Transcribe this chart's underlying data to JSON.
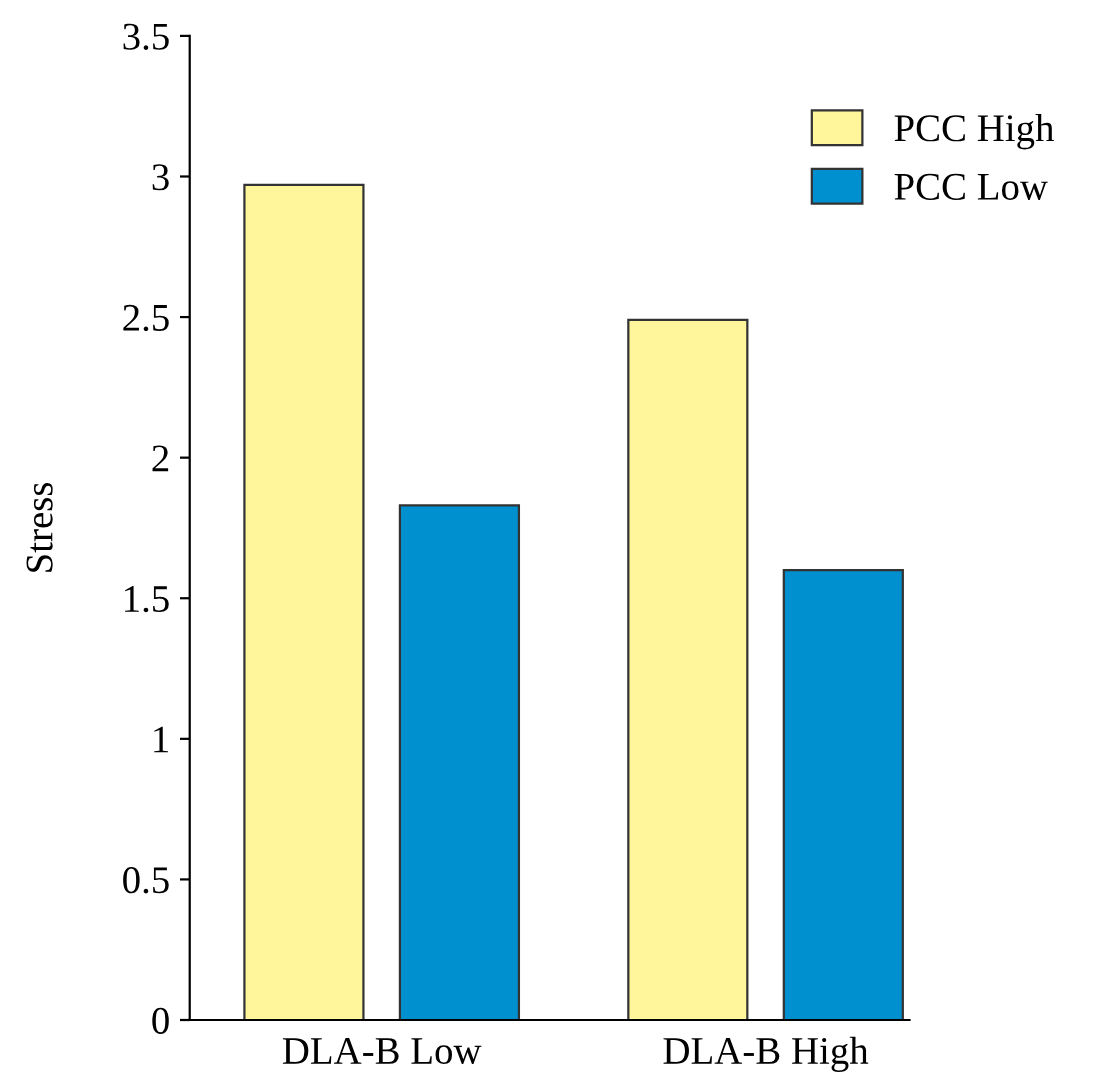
{
  "chart_data": {
    "type": "bar",
    "ylabel": "Stress",
    "categories": [
      "DLA-B Low",
      "DLA-B High"
    ],
    "series": [
      {
        "name": "PCC High",
        "color": "#fff59b",
        "values": [
          2.97,
          2.49
        ]
      },
      {
        "name": "PCC Low",
        "color": "#0090cf",
        "values": [
          1.83,
          1.6
        ]
      }
    ],
    "ylim": [
      0,
      3.5
    ],
    "yticks": [
      0,
      0.5,
      1,
      1.5,
      2,
      2.5,
      3,
      3.5
    ],
    "grid": false,
    "legend": "top right"
  }
}
